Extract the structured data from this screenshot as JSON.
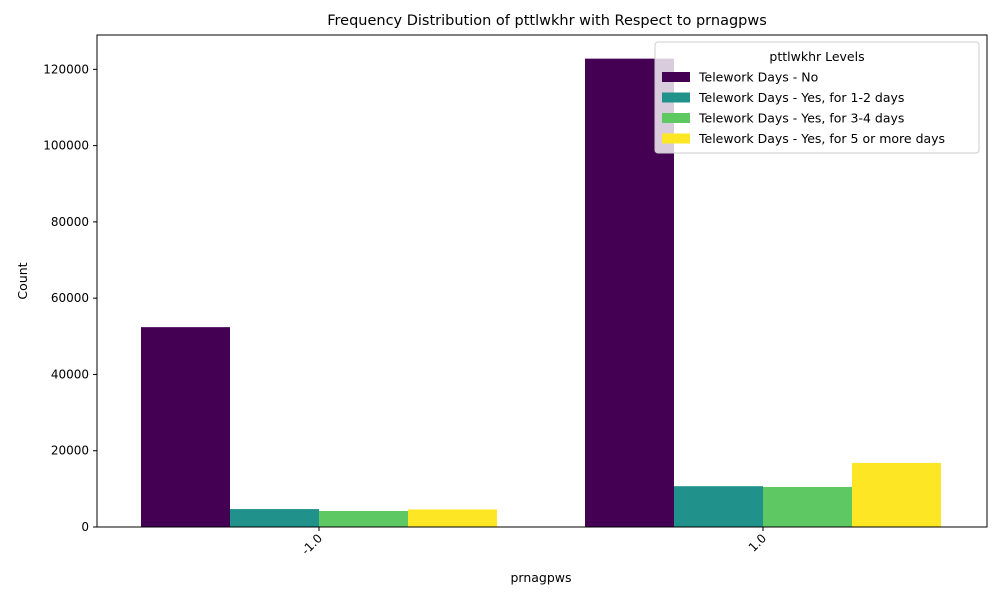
{
  "chart_data": {
    "type": "bar",
    "title": "Frequency Distribution of pttlwkhr with Respect to prnagpws",
    "xlabel": "prnagpws",
    "ylabel": "Count",
    "categories": [
      "-1.0",
      "1.0"
    ],
    "ylim": [
      0,
      129000
    ],
    "yticks": [
      0,
      20000,
      40000,
      60000,
      80000,
      100000,
      120000
    ],
    "legend_title": "pttlwkhr Levels",
    "legend_position": "top-right",
    "grid": false,
    "series": [
      {
        "name": "Telework Days - No",
        "color": "#440154",
        "values": [
          52400,
          122800
        ]
      },
      {
        "name": "Telework Days - Yes, for 1-2 days",
        "color": "#21918c",
        "values": [
          4700,
          10700
        ]
      },
      {
        "name": "Telework Days - Yes, for 3-4 days",
        "color": "#5ec962",
        "values": [
          4200,
          10500
        ]
      },
      {
        "name": "Telework Days - Yes, for 5 or more days",
        "color": "#fde725",
        "values": [
          4600,
          16800
        ]
      }
    ]
  }
}
